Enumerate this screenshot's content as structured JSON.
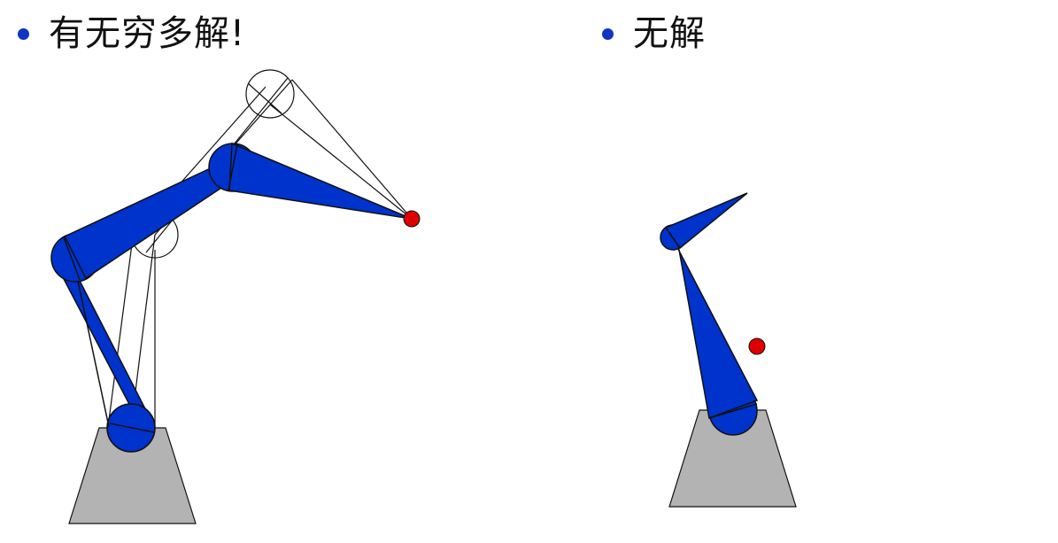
{
  "bullets": {
    "left": {
      "text": "有无穷多解!"
    },
    "right": {
      "text": "无解"
    }
  },
  "colors": {
    "bullet": "#1034c4",
    "link_fill": "#0033cc",
    "outline": "#111111",
    "target": "#dd0000",
    "base": "#b3b3b3"
  }
}
